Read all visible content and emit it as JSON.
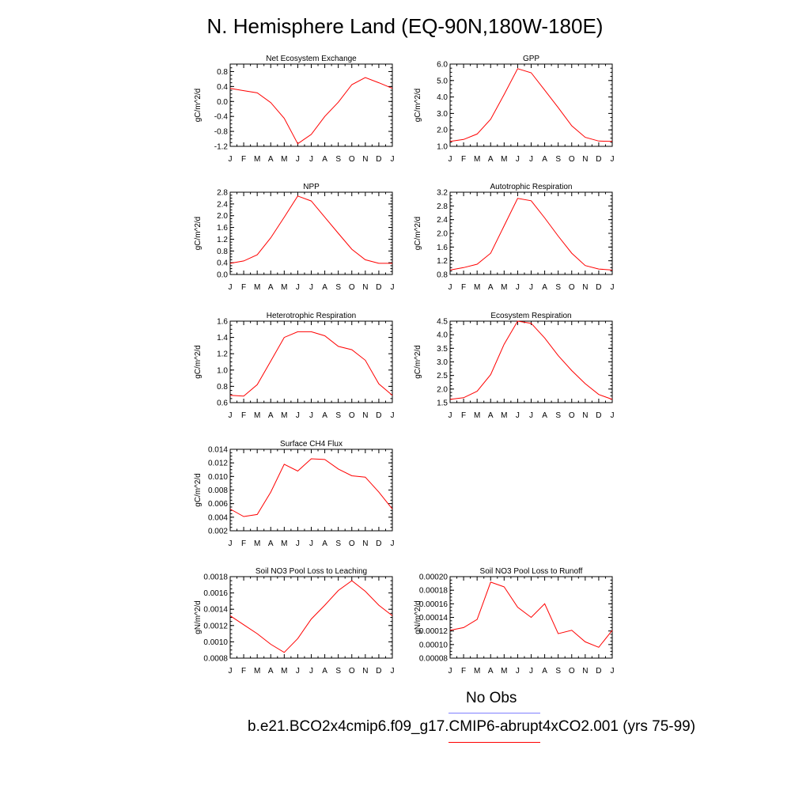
{
  "title": "N. Hemisphere Land (EQ-90N,180W-180E)",
  "legend": {
    "obs_label": "No Obs",
    "obs_color": "#8080ff",
    "model_label": "b.e21.BCO2x4cmip6.f09_g17.CMIP6-abrupt4xCO2.001 (yrs 75-99)",
    "model_color": "#ff0000"
  },
  "chart_data": [
    {
      "type": "line",
      "title": "Net Ecosystem Exchange",
      "ylabel": "gC/m^2/d",
      "categories": [
        "J",
        "F",
        "M",
        "A",
        "M",
        "J",
        "J",
        "A",
        "S",
        "O",
        "N",
        "D",
        "J"
      ],
      "yticks": [
        "0.8",
        "0.4",
        "0.0",
        "-0.4",
        "-0.8",
        "-1.2"
      ],
      "ylim": [
        -1.2,
        1.0
      ],
      "values": [
        0.35,
        0.29,
        0.23,
        -0.03,
        -0.45,
        -1.13,
        -0.88,
        -0.4,
        -0.02,
        0.45,
        0.64,
        0.5,
        0.35
      ]
    },
    {
      "type": "line",
      "title": "GPP",
      "ylabel": "gC/m^2/d",
      "categories": [
        "J",
        "F",
        "M",
        "A",
        "M",
        "J",
        "J",
        "A",
        "S",
        "O",
        "N",
        "D",
        "J"
      ],
      "yticks": [
        "6.0",
        "5.0",
        "4.0",
        "3.0",
        "2.0",
        "1.0"
      ],
      "ylim": [
        1.0,
        6.0
      ],
      "values": [
        1.3,
        1.42,
        1.75,
        2.65,
        4.15,
        5.72,
        5.47,
        4.42,
        3.35,
        2.25,
        1.55,
        1.32,
        1.3
      ]
    },
    {
      "type": "line",
      "title": "NPP",
      "ylabel": "gC/m^2/d",
      "categories": [
        "J",
        "F",
        "M",
        "A",
        "M",
        "J",
        "J",
        "A",
        "S",
        "O",
        "N",
        "D",
        "J"
      ],
      "yticks": [
        "2.8",
        "2.4",
        "2.0",
        "1.6",
        "1.2",
        "0.8",
        "0.4",
        "0.0"
      ],
      "ylim": [
        0.0,
        2.8
      ],
      "values": [
        0.38,
        0.46,
        0.67,
        1.25,
        1.95,
        2.67,
        2.5,
        1.95,
        1.4,
        0.86,
        0.5,
        0.38,
        0.38
      ]
    },
    {
      "type": "line",
      "title": "Autotrophic Respiration",
      "ylabel": "gC/m^2/d",
      "categories": [
        "J",
        "F",
        "M",
        "A",
        "M",
        "J",
        "J",
        "A",
        "S",
        "O",
        "N",
        "D",
        "J"
      ],
      "yticks": [
        "3.2",
        "2.8",
        "2.4",
        "2.0",
        "1.6",
        "1.2",
        "0.8"
      ],
      "ylim": [
        0.8,
        3.2
      ],
      "values": [
        0.93,
        1.0,
        1.1,
        1.42,
        2.22,
        3.02,
        2.95,
        2.45,
        1.92,
        1.42,
        1.06,
        0.96,
        0.93
      ]
    },
    {
      "type": "line",
      "title": "Heterotrophic Respiration",
      "ylabel": "gC/m^2/d",
      "categories": [
        "J",
        "F",
        "M",
        "A",
        "M",
        "J",
        "J",
        "A",
        "S",
        "O",
        "N",
        "D",
        "J"
      ],
      "yticks": [
        "1.6",
        "1.4",
        "1.2",
        "1.0",
        "0.8",
        "0.6"
      ],
      "ylim": [
        0.6,
        1.6
      ],
      "values": [
        0.69,
        0.68,
        0.82,
        1.11,
        1.4,
        1.47,
        1.47,
        1.42,
        1.29,
        1.25,
        1.12,
        0.83,
        0.69
      ]
    },
    {
      "type": "line",
      "title": "Ecosystem Respiration",
      "ylabel": "gC/m^2/d",
      "categories": [
        "J",
        "F",
        "M",
        "A",
        "M",
        "J",
        "J",
        "A",
        "S",
        "O",
        "N",
        "D",
        "J"
      ],
      "yticks": [
        "4.5",
        "4.0",
        "3.5",
        "3.0",
        "2.5",
        "2.0",
        "1.5"
      ],
      "ylim": [
        1.5,
        4.5
      ],
      "values": [
        1.62,
        1.68,
        1.92,
        2.53,
        3.65,
        4.5,
        4.42,
        3.88,
        3.23,
        2.68,
        2.2,
        1.8,
        1.62
      ]
    },
    {
      "type": "line",
      "title": "Surface CH4 Flux",
      "ylabel": "gC/m^2/d",
      "categories": [
        "J",
        "F",
        "M",
        "A",
        "M",
        "J",
        "J",
        "A",
        "S",
        "O",
        "N",
        "D",
        "J"
      ],
      "yticks": [
        "0.014",
        "0.012",
        "0.010",
        "0.008",
        "0.006",
        "0.004",
        "0.002"
      ],
      "ylim": [
        0.002,
        0.014
      ],
      "values": [
        0.0052,
        0.0041,
        0.0044,
        0.0077,
        0.0118,
        0.0108,
        0.0126,
        0.0125,
        0.0111,
        0.0101,
        0.0099,
        0.0077,
        0.0052
      ]
    },
    {
      "type": "line",
      "title": "Soil NO3 Pool Loss to Leaching",
      "ylabel": "gN/m^2/d",
      "categories": [
        "J",
        "F",
        "M",
        "A",
        "M",
        "J",
        "J",
        "A",
        "S",
        "O",
        "N",
        "D",
        "J"
      ],
      "yticks": [
        "0.0018",
        "0.0016",
        "0.0014",
        "0.0012",
        "0.0010",
        "0.0008"
      ],
      "ylim": [
        0.0008,
        0.0018
      ],
      "values": [
        0.00132,
        0.00121,
        0.0011,
        0.00097,
        0.00087,
        0.00104,
        0.00128,
        0.00145,
        0.00163,
        0.00175,
        0.00162,
        0.00145,
        0.00132
      ]
    },
    {
      "type": "line",
      "title": "Soil NO3 Pool Loss to Runoff",
      "ylabel": "gN/m^2/d",
      "categories": [
        "J",
        "F",
        "M",
        "A",
        "M",
        "J",
        "J",
        "A",
        "S",
        "O",
        "N",
        "D",
        "J"
      ],
      "yticks": [
        "0.00020",
        "0.00018",
        "0.00016",
        "0.00014",
        "0.00012",
        "0.00010",
        "0.00008"
      ],
      "ylim": [
        8e-05,
        0.0002
      ],
      "values": [
        0.000121,
        0.000125,
        0.000137,
        0.000192,
        0.000185,
        0.000155,
        0.00014,
        0.00016,
        0.000116,
        0.000121,
        0.000104,
        9.6e-05,
        0.000121
      ]
    }
  ]
}
